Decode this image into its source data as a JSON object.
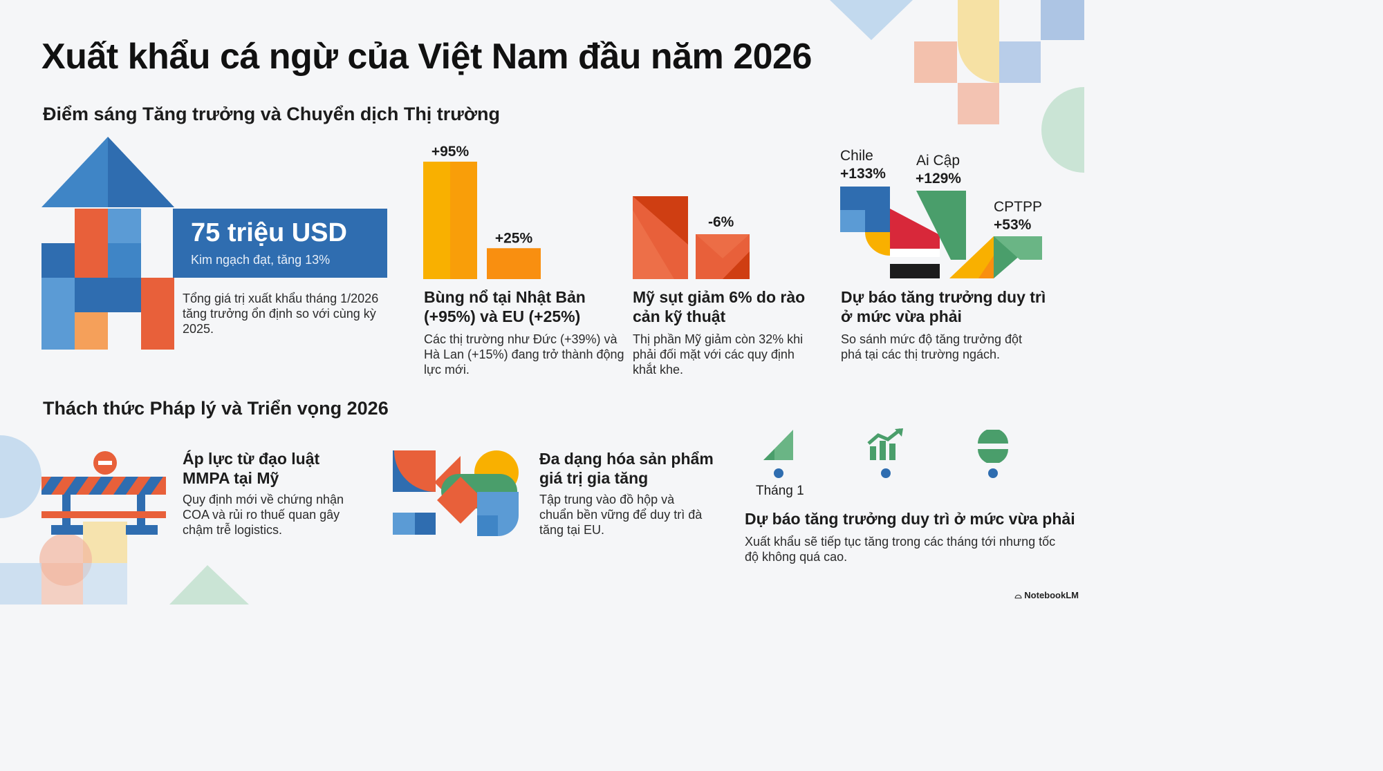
{
  "title": "Xuất khẩu cá ngừ của Việt Nam đầu năm 2026",
  "section1": {
    "heading": "Điểm sáng Tăng trưởng và Chuyển dịch Thị trường",
    "kpi": {
      "value": "75 triệu USD",
      "subtitle": "Kim ngạch đạt, tăng 13%",
      "description": "Tổng giá trị xuất khẩu tháng 1/2026 tăng trưởng ổn định so với cùng kỳ 2025."
    },
    "japan_eu": {
      "title": "Bùng nổ tại Nhật Bản (+95%) và EU (+25%)",
      "description": "Các thị trường như Đức (+39%) và Hà Lan (+15%) đang trở thành động lực mới.",
      "chart_data": {
        "type": "bar",
        "categories": [
          "Nhật Bản",
          "EU"
        ],
        "values": [
          95,
          25
        ],
        "value_labels": [
          "+95%",
          "+25%"
        ],
        "colors": [
          "#f9b000",
          "#f98f10"
        ]
      }
    },
    "usa": {
      "title": "Mỹ sụt giảm 6% do rào cản kỹ thuật",
      "description": "Thị phần Mỹ giảm còn 32% khi phải đối mặt với các quy định khắt khe.",
      "value_label": "-6%",
      "colors": [
        "#e8603a",
        "#cf3e12"
      ]
    },
    "niche": {
      "title": "Dự  báo tăng trưởng duy trì ở mức vừa phải",
      "description": "So sánh mức độ tăng trưởng đột phá tại các thị trường ngách.",
      "markets": [
        {
          "name": "Chile",
          "value": "+133%"
        },
        {
          "name": "Ai Cập",
          "value": "+129%"
        },
        {
          "name": "CPTPP",
          "value": "+53%"
        }
      ]
    }
  },
  "section2": {
    "heading": "Thách thức Pháp lý và Triển vọng 2026",
    "mmpa": {
      "title": "Áp lực từ đạo luật MMPA tại Mỹ",
      "description": "Quy định mới về chứng nhận COA và rủi ro thuế quan gây chậm trễ logistics."
    },
    "diversify": {
      "title": "Đa dạng hóa sản phẩm giá trị gia tăng",
      "description": "Tập trung vào đồ hộp và chuẩn bền vững để duy trì đà tăng tại EU."
    },
    "outlook": {
      "timeline_label": "Tháng 1",
      "title": "Dự báo tăng trưởng duy trì ở mức vừa phải",
      "description": "Xuất khẩu sẽ tiếp tục tăng trong các tháng tới nhưng tốc độ không quá cao.",
      "icons": [
        "signal-up-icon",
        "growth-chart-icon",
        "balance-icon"
      ]
    }
  },
  "brand": "NotebookLM",
  "colors": {
    "blue": "#2f6db0",
    "orange": "#e8603a",
    "yellow": "#f9b000",
    "green": "#4a9e6b",
    "red": "#d8283a"
  }
}
